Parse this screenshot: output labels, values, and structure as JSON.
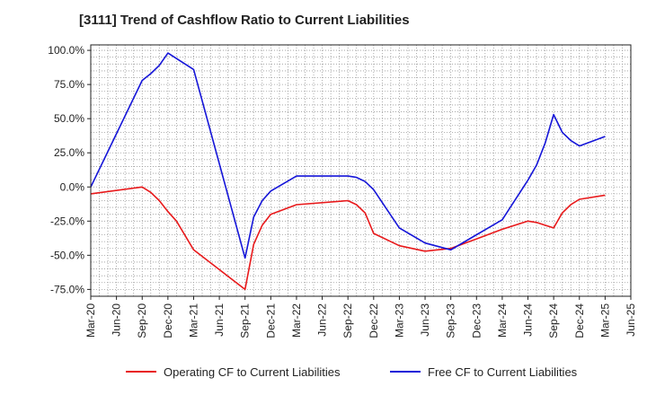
{
  "chart_data": {
    "type": "line",
    "title": "[3111]  Trend of Cashflow Ratio to Current Liabilities",
    "xlabel": "",
    "ylabel": "",
    "ylim": [
      -80,
      104
    ],
    "y_ticks": [
      "100.0%",
      "75.0%",
      "50.0%",
      "25.0%",
      "0.0%",
      "-25.0%",
      "-50.0%",
      "-75.0%"
    ],
    "y_tick_values": [
      100,
      75,
      50,
      25,
      0,
      -25,
      -50,
      -75
    ],
    "x_ticks": [
      "Mar-20",
      "Jun-20",
      "Sep-20",
      "Dec-20",
      "Mar-21",
      "Jun-21",
      "Sep-21",
      "Dec-21",
      "Mar-22",
      "Jun-22",
      "Sep-22",
      "Dec-22",
      "Mar-23",
      "Jun-23",
      "Sep-23",
      "Dec-23",
      "Mar-24",
      "Jun-24",
      "Sep-24",
      "Dec-24",
      "Mar-25",
      "Jun-25"
    ],
    "grid": true,
    "legend_position": "bottom",
    "series": [
      {
        "name": "Operating CF to Current Liabilities",
        "color": "#e8191b",
        "x": [
          "Mar-20",
          "Sep-20",
          "Oct-20",
          "Nov-20",
          "Dec-20",
          "Jan-21",
          "Mar-21",
          "Sep-21",
          "Oct-21",
          "Nov-21",
          "Dec-21",
          "Mar-22",
          "Sep-22",
          "Oct-22",
          "Nov-22",
          "Dec-22",
          "Mar-23",
          "Jun-23",
          "Sep-23",
          "Dec-23",
          "Mar-24",
          "Jun-24",
          "Jul-24",
          "Aug-24",
          "Sep-24",
          "Oct-24",
          "Nov-24",
          "Dec-24",
          "Mar-25"
        ],
        "values": [
          -5,
          0,
          -4,
          -10,
          -18,
          -25,
          -46,
          -75,
          -42,
          -28,
          -20,
          -13,
          -10,
          -13,
          -19,
          -34,
          -43,
          -47,
          -45,
          -38,
          -31,
          -25,
          -26,
          -28,
          -30,
          -19,
          -13,
          -9,
          -6
        ]
      },
      {
        "name": "Free CF to Current Liabilities",
        "color": "#1515d8",
        "x": [
          "Mar-20",
          "Sep-20",
          "Oct-20",
          "Nov-20",
          "Dec-20",
          "Jan-21",
          "Mar-21",
          "Sep-21",
          "Oct-21",
          "Nov-21",
          "Dec-21",
          "Mar-22",
          "Sep-22",
          "Oct-22",
          "Nov-22",
          "Dec-22",
          "Mar-23",
          "Jun-23",
          "Sep-23",
          "Dec-23",
          "Mar-24",
          "Jun-24",
          "Jul-24",
          "Aug-24",
          "Sep-24",
          "Oct-24",
          "Nov-24",
          "Dec-24",
          "Mar-25"
        ],
        "values": [
          0,
          78,
          83,
          89,
          98,
          94,
          86,
          -52,
          -22,
          -10,
          -3,
          8,
          8,
          7,
          4,
          -2,
          -30,
          -41,
          -46,
          -35,
          -24,
          5,
          16,
          32,
          53,
          40,
          34,
          30,
          37
        ]
      }
    ]
  }
}
